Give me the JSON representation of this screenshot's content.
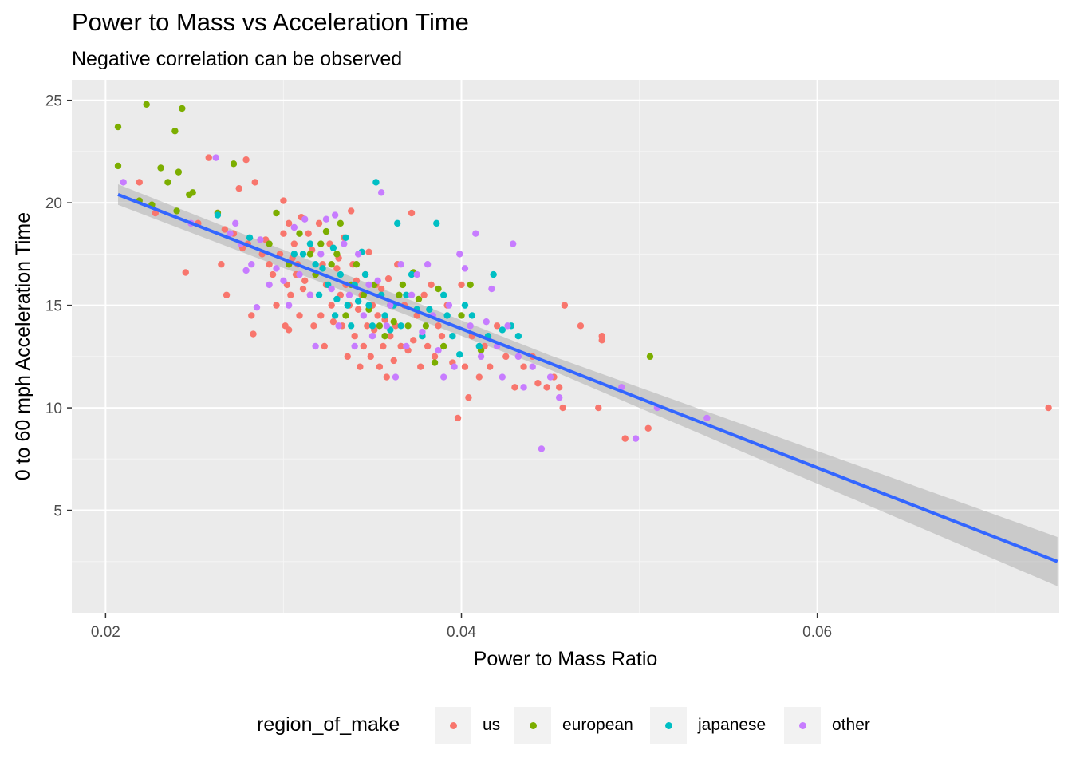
{
  "title": "Power to Mass vs Acceleration Time",
  "subtitle": "Negative correlation can be observed",
  "legend": {
    "title": "region_of_make",
    "items": [
      {
        "label": "us",
        "color": "#F8766D"
      },
      {
        "label": "european",
        "color": "#7CAE00"
      },
      {
        "label": "japanese",
        "color": "#00BFC4"
      },
      {
        "label": "other",
        "color": "#C77CFF"
      }
    ]
  },
  "chart_data": {
    "type": "scatter",
    "title": "Power to Mass vs Acceleration Time",
    "subtitle": "Negative correlation can be observed",
    "xlabel": "Power to Mass Ratio",
    "ylabel": "0 to 60 mph Acceleration Time",
    "xlim": [
      0.0181,
      0.0736
    ],
    "ylim": [
      0.0,
      26.0
    ],
    "x_ticks": [
      0.02,
      0.04,
      0.06
    ],
    "x_tick_labels": [
      "0.02",
      "0.04",
      "0.06"
    ],
    "y_ticks": [
      5,
      10,
      15,
      20,
      25
    ],
    "y_tick_labels": [
      "5",
      "10",
      "15",
      "20",
      "25"
    ],
    "grid": true,
    "legend_position": "bottom",
    "trend": {
      "method": "linear",
      "color": "#3366FF",
      "points": [
        [
          0.0207,
          20.4
        ],
        [
          0.0735,
          2.5
        ]
      ],
      "band": [
        [
          0.0207,
          19.9,
          20.9
        ],
        [
          0.045,
          11.85,
          12.55
        ],
        [
          0.0735,
          1.3,
          3.7
        ]
      ]
    },
    "series": [
      {
        "name": "us",
        "color": "#F8766D",
        "points": [
          [
            0.0219,
            21.0
          ],
          [
            0.0228,
            19.5
          ],
          [
            0.0245,
            16.6
          ],
          [
            0.0252,
            19.0
          ],
          [
            0.0258,
            22.2
          ],
          [
            0.0263,
            19.5
          ],
          [
            0.0265,
            17.0
          ],
          [
            0.0267,
            18.7
          ],
          [
            0.0268,
            15.5
          ],
          [
            0.0272,
            18.5
          ],
          [
            0.0275,
            20.7
          ],
          [
            0.0277,
            17.8
          ],
          [
            0.0279,
            22.1
          ],
          [
            0.028,
            18.0
          ],
          [
            0.0282,
            14.5
          ],
          [
            0.0283,
            13.6
          ],
          [
            0.0284,
            21.0
          ],
          [
            0.0288,
            17.5
          ],
          [
            0.029,
            18.2
          ],
          [
            0.0292,
            17.0
          ],
          [
            0.0294,
            16.5
          ],
          [
            0.0296,
            15.0
          ],
          [
            0.0298,
            17.5
          ],
          [
            0.03,
            20.1
          ],
          [
            0.03,
            18.5
          ],
          [
            0.0301,
            14.0
          ],
          [
            0.0302,
            16.0
          ],
          [
            0.0303,
            13.8
          ],
          [
            0.0303,
            19.0
          ],
          [
            0.0304,
            15.5
          ],
          [
            0.0305,
            17.3
          ],
          [
            0.0306,
            18.0
          ],
          [
            0.0307,
            16.5
          ],
          [
            0.0308,
            17.0
          ],
          [
            0.0309,
            14.5
          ],
          [
            0.031,
            19.3
          ],
          [
            0.0311,
            15.8
          ],
          [
            0.0312,
            16.2
          ],
          [
            0.0314,
            18.5
          ],
          [
            0.0315,
            15.5
          ],
          [
            0.0316,
            17.7
          ],
          [
            0.0317,
            14.0
          ],
          [
            0.0318,
            16.5
          ],
          [
            0.032,
            19.0
          ],
          [
            0.0321,
            14.5
          ],
          [
            0.0322,
            17.0
          ],
          [
            0.0323,
            13.0
          ],
          [
            0.0324,
            16.0
          ],
          [
            0.0326,
            18.0
          ],
          [
            0.0327,
            15.0
          ],
          [
            0.0328,
            14.2
          ],
          [
            0.033,
            16.8
          ],
          [
            0.0331,
            17.3
          ],
          [
            0.0332,
            15.5
          ],
          [
            0.0333,
            14.0
          ],
          [
            0.0334,
            18.3
          ],
          [
            0.0335,
            16.0
          ],
          [
            0.0336,
            12.5
          ],
          [
            0.0337,
            15.0
          ],
          [
            0.0338,
            19.6
          ],
          [
            0.0339,
            17.0
          ],
          [
            0.034,
            13.5
          ],
          [
            0.0341,
            16.2
          ],
          [
            0.0342,
            14.8
          ],
          [
            0.0343,
            12.0
          ],
          [
            0.0344,
            15.5
          ],
          [
            0.0345,
            13.0
          ],
          [
            0.0346,
            16.5
          ],
          [
            0.0347,
            14.0
          ],
          [
            0.0348,
            17.6
          ],
          [
            0.0349,
            12.5
          ],
          [
            0.035,
            15.0
          ],
          [
            0.0351,
            13.8
          ],
          [
            0.0352,
            16.0
          ],
          [
            0.0353,
            14.5
          ],
          [
            0.0354,
            12.0
          ],
          [
            0.0355,
            15.8
          ],
          [
            0.0356,
            13.0
          ],
          [
            0.0357,
            14.3
          ],
          [
            0.0358,
            11.5
          ],
          [
            0.0359,
            16.3
          ],
          [
            0.036,
            13.5
          ],
          [
            0.0361,
            15.0
          ],
          [
            0.0362,
            12.3
          ],
          [
            0.0363,
            14.0
          ],
          [
            0.0364,
            17.0
          ],
          [
            0.0366,
            13.0
          ],
          [
            0.0368,
            15.0
          ],
          [
            0.037,
            12.8
          ],
          [
            0.0372,
            19.5
          ],
          [
            0.0373,
            13.3
          ],
          [
            0.0375,
            14.5
          ],
          [
            0.0377,
            12.0
          ],
          [
            0.0379,
            15.5
          ],
          [
            0.0381,
            13.0
          ],
          [
            0.0383,
            16.0
          ],
          [
            0.0385,
            12.5
          ],
          [
            0.0387,
            14.0
          ],
          [
            0.0389,
            13.5
          ],
          [
            0.0392,
            15.0
          ],
          [
            0.0395,
            12.2
          ],
          [
            0.0398,
            9.5
          ],
          [
            0.04,
            16.0
          ],
          [
            0.0402,
            12.0
          ],
          [
            0.0404,
            10.5
          ],
          [
            0.0406,
            13.5
          ],
          [
            0.041,
            11.5
          ],
          [
            0.0413,
            13.0
          ],
          [
            0.0416,
            12.0
          ],
          [
            0.042,
            14.0
          ],
          [
            0.0425,
            12.5
          ],
          [
            0.043,
            11.0
          ],
          [
            0.0435,
            12.0
          ],
          [
            0.044,
            12.5
          ],
          [
            0.0443,
            11.2
          ],
          [
            0.0448,
            11.0
          ],
          [
            0.0452,
            11.5
          ],
          [
            0.0455,
            11.0
          ],
          [
            0.0457,
            10.0
          ],
          [
            0.0458,
            15.0
          ],
          [
            0.0467,
            14.0
          ],
          [
            0.0477,
            10.0
          ],
          [
            0.0479,
            13.5
          ],
          [
            0.0479,
            13.3
          ],
          [
            0.0492,
            8.5
          ],
          [
            0.0505,
            9.0
          ],
          [
            0.073,
            10.0
          ]
        ]
      },
      {
        "name": "european",
        "color": "#7CAE00",
        "points": [
          [
            0.0207,
            23.7
          ],
          [
            0.0207,
            21.8
          ],
          [
            0.0219,
            20.1
          ],
          [
            0.0223,
            24.8
          ],
          [
            0.0226,
            19.9
          ],
          [
            0.0231,
            21.7
          ],
          [
            0.0235,
            21.0
          ],
          [
            0.0239,
            23.5
          ],
          [
            0.024,
            19.6
          ],
          [
            0.0241,
            21.5
          ],
          [
            0.0243,
            24.6
          ],
          [
            0.0247,
            20.4
          ],
          [
            0.0249,
            20.5
          ],
          [
            0.0263,
            19.5
          ],
          [
            0.0272,
            21.9
          ],
          [
            0.0292,
            18.0
          ],
          [
            0.0296,
            19.5
          ],
          [
            0.0303,
            17.0
          ],
          [
            0.0309,
            18.5
          ],
          [
            0.0315,
            17.5
          ],
          [
            0.0318,
            16.5
          ],
          [
            0.0321,
            18.0
          ],
          [
            0.0324,
            18.6
          ],
          [
            0.0327,
            17.0
          ],
          [
            0.033,
            17.5
          ],
          [
            0.0332,
            19.0
          ],
          [
            0.0335,
            14.5
          ],
          [
            0.0338,
            16.0
          ],
          [
            0.0341,
            17.0
          ],
          [
            0.0345,
            15.5
          ],
          [
            0.0348,
            14.8
          ],
          [
            0.0351,
            16.0
          ],
          [
            0.0354,
            14.0
          ],
          [
            0.0357,
            13.5
          ],
          [
            0.036,
            15.0
          ],
          [
            0.0362,
            14.2
          ],
          [
            0.0365,
            15.5
          ],
          [
            0.0367,
            16.0
          ],
          [
            0.037,
            14.0
          ],
          [
            0.0373,
            16.6
          ],
          [
            0.0376,
            15.3
          ],
          [
            0.038,
            14.0
          ],
          [
            0.0385,
            12.2
          ],
          [
            0.0387,
            15.8
          ],
          [
            0.039,
            13.0
          ],
          [
            0.04,
            14.5
          ],
          [
            0.0405,
            16.0
          ],
          [
            0.0411,
            12.8
          ],
          [
            0.0506,
            12.5
          ]
        ]
      },
      {
        "name": "japanese",
        "color": "#00BFC4",
        "points": [
          [
            0.0263,
            19.4
          ],
          [
            0.0281,
            18.3
          ],
          [
            0.0306,
            17.5
          ],
          [
            0.0311,
            17.5
          ],
          [
            0.0315,
            18.0
          ],
          [
            0.0318,
            17.0
          ],
          [
            0.032,
            15.5
          ],
          [
            0.0322,
            16.8
          ],
          [
            0.0325,
            16.0
          ],
          [
            0.0328,
            17.8
          ],
          [
            0.0329,
            14.5
          ],
          [
            0.033,
            15.3
          ],
          [
            0.0332,
            16.5
          ],
          [
            0.0335,
            18.3
          ],
          [
            0.0336,
            15.0
          ],
          [
            0.0338,
            14.0
          ],
          [
            0.034,
            16.0
          ],
          [
            0.0342,
            15.2
          ],
          [
            0.0344,
            17.6
          ],
          [
            0.0346,
            16.5
          ],
          [
            0.0348,
            15.0
          ],
          [
            0.035,
            14.0
          ],
          [
            0.0352,
            21.0
          ],
          [
            0.0355,
            15.5
          ],
          [
            0.0357,
            14.5
          ],
          [
            0.036,
            13.8
          ],
          [
            0.0362,
            15.0
          ],
          [
            0.0364,
            19.0
          ],
          [
            0.0366,
            14.0
          ],
          [
            0.0369,
            15.5
          ],
          [
            0.0372,
            16.5
          ],
          [
            0.0375,
            14.8
          ],
          [
            0.0378,
            13.5
          ],
          [
            0.0382,
            14.8
          ],
          [
            0.0386,
            19.0
          ],
          [
            0.039,
            15.5
          ],
          [
            0.0392,
            14.5
          ],
          [
            0.0395,
            13.5
          ],
          [
            0.0399,
            12.6
          ],
          [
            0.0402,
            15.0
          ],
          [
            0.0406,
            14.5
          ],
          [
            0.041,
            13.0
          ],
          [
            0.0415,
            13.5
          ],
          [
            0.0418,
            16.5
          ],
          [
            0.0423,
            13.8
          ],
          [
            0.0428,
            14.0
          ],
          [
            0.0432,
            13.5
          ]
        ]
      },
      {
        "name": "other",
        "color": "#C77CFF",
        "points": [
          [
            0.021,
            21.0
          ],
          [
            0.0248,
            19.0
          ],
          [
            0.0262,
            22.2
          ],
          [
            0.027,
            18.5
          ],
          [
            0.0273,
            19.0
          ],
          [
            0.0276,
            18.0
          ],
          [
            0.0279,
            16.7
          ],
          [
            0.0282,
            17.0
          ],
          [
            0.0285,
            14.9
          ],
          [
            0.0287,
            18.2
          ],
          [
            0.0292,
            16.0
          ],
          [
            0.0296,
            16.8
          ],
          [
            0.03,
            16.2
          ],
          [
            0.0303,
            15.0
          ],
          [
            0.0306,
            18.8
          ],
          [
            0.0309,
            16.5
          ],
          [
            0.0312,
            19.2
          ],
          [
            0.0315,
            15.5
          ],
          [
            0.0318,
            13.0
          ],
          [
            0.0321,
            17.5
          ],
          [
            0.0324,
            19.2
          ],
          [
            0.0327,
            15.8
          ],
          [
            0.0329,
            19.4
          ],
          [
            0.0331,
            14.0
          ],
          [
            0.0334,
            18.0
          ],
          [
            0.0337,
            15.5
          ],
          [
            0.034,
            13.0
          ],
          [
            0.0342,
            17.5
          ],
          [
            0.0345,
            14.5
          ],
          [
            0.0348,
            16.0
          ],
          [
            0.035,
            13.5
          ],
          [
            0.0353,
            16.2
          ],
          [
            0.0355,
            20.5
          ],
          [
            0.0358,
            14.0
          ],
          [
            0.036,
            15.0
          ],
          [
            0.0363,
            11.5
          ],
          [
            0.0366,
            17.0
          ],
          [
            0.0369,
            13.0
          ],
          [
            0.0372,
            15.5
          ],
          [
            0.0375,
            16.5
          ],
          [
            0.0378,
            13.7
          ],
          [
            0.0381,
            17.0
          ],
          [
            0.0384,
            14.5
          ],
          [
            0.0387,
            12.8
          ],
          [
            0.039,
            11.5
          ],
          [
            0.0393,
            15.0
          ],
          [
            0.0396,
            12.0
          ],
          [
            0.0399,
            17.5
          ],
          [
            0.0402,
            16.8
          ],
          [
            0.0405,
            14.0
          ],
          [
            0.0408,
            18.5
          ],
          [
            0.0411,
            12.5
          ],
          [
            0.0414,
            14.2
          ],
          [
            0.0417,
            15.8
          ],
          [
            0.042,
            13.0
          ],
          [
            0.0423,
            11.5
          ],
          [
            0.0426,
            14.0
          ],
          [
            0.0429,
            18.0
          ],
          [
            0.0432,
            12.5
          ],
          [
            0.0435,
            11.0
          ],
          [
            0.044,
            12.0
          ],
          [
            0.0445,
            8.0
          ],
          [
            0.045,
            11.5
          ],
          [
            0.0455,
            10.5
          ],
          [
            0.049,
            11.0
          ],
          [
            0.0498,
            8.5
          ],
          [
            0.051,
            10.0
          ],
          [
            0.0538,
            9.5
          ]
        ]
      }
    ]
  }
}
